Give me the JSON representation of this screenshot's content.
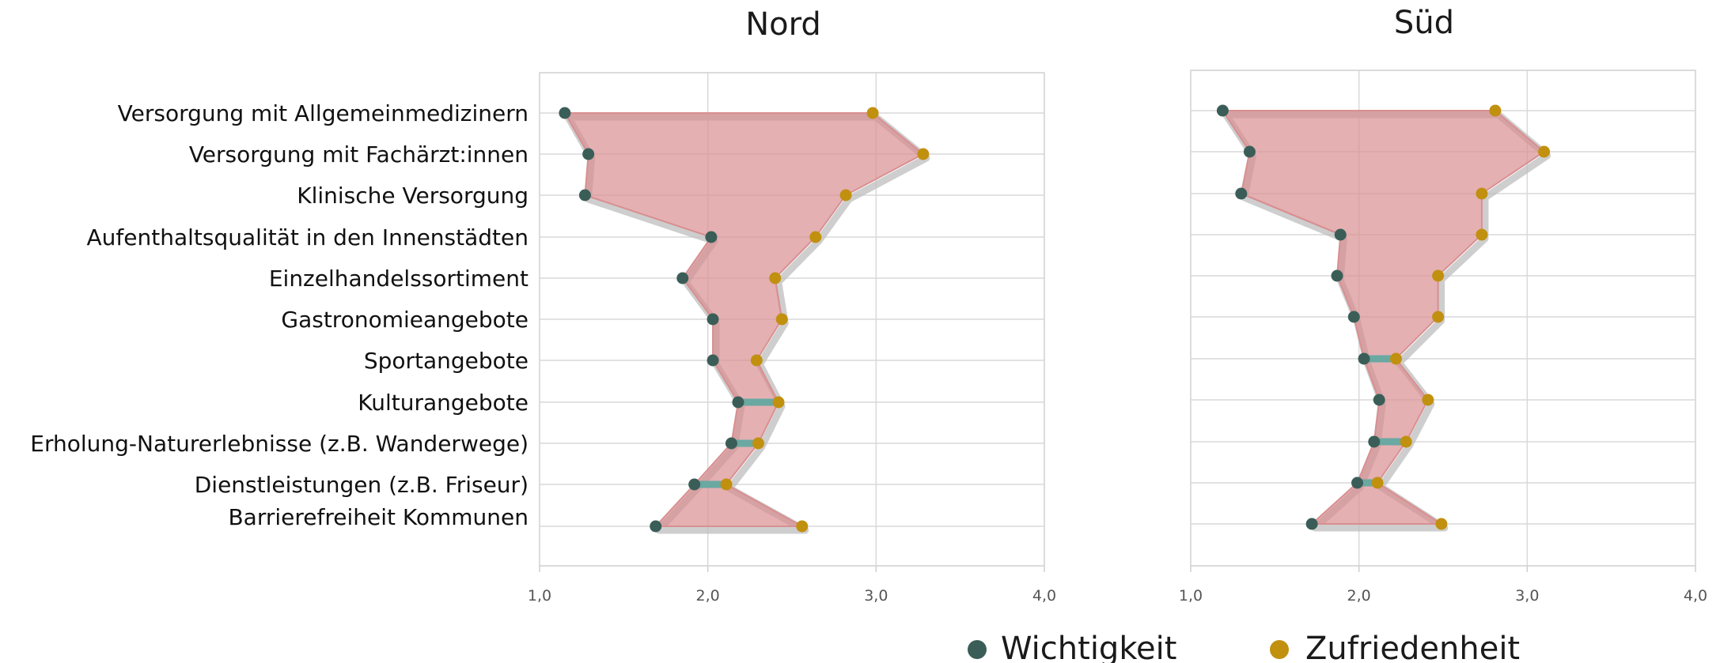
{
  "chart_data": {
    "type": "dumbbell-area",
    "categories": [
      "Versorgung mit Allgemeinmedizinern",
      "Versorgung mit Fachärzt:innen",
      "Klinische Versorgung",
      "Aufenthaltsqualität in den Innenstädten",
      "Einzelhandelssortiment",
      "Gastronomieangebote",
      "Sportangebote",
      "Kulturangebote",
      "Erholung-Naturerlebnisse (z.B. Wanderwege)",
      "Dienstleistungen (z.B. Friseur)",
      "Barrierefreiheit Kommunen"
    ],
    "xlim": [
      1.0,
      4.0
    ],
    "xticks": [
      1.0,
      2.0,
      3.0,
      4.0
    ],
    "xtick_labels": [
      "1,0",
      "2,0",
      "3,0",
      "4,0"
    ],
    "grid": true,
    "legend": {
      "placement": "bottom-center",
      "entries": [
        {
          "name": "Wichtigkeit",
          "color": "#3a5e57"
        },
        {
          "name": "Zufriedenheit",
          "color": "#c1900f"
        }
      ]
    },
    "colors": {
      "area_fill": "#d98f91",
      "shadow": "#bdbdbd",
      "wichtigkeit": "#3a5e57",
      "zufriedenheit": "#c1900f",
      "overlap_bar": "#6aa8a2",
      "grid": "#d9d9d9",
      "frame": "#cfcfcf"
    },
    "panels": [
      {
        "title": "Nord",
        "series": [
          {
            "name": "Wichtigkeit",
            "values": [
              1.15,
              1.29,
              1.27,
              2.02,
              1.85,
              2.03,
              2.03,
              2.18,
              2.14,
              1.92,
              1.69
            ]
          },
          {
            "name": "Zufriedenheit",
            "values": [
              2.98,
              3.28,
              2.82,
              2.64,
              2.4,
              2.44,
              2.29,
              2.42,
              2.3,
              2.11,
              2.56
            ]
          }
        ]
      },
      {
        "title": "Süd",
        "series": [
          {
            "name": "Wichtigkeit",
            "values": [
              1.19,
              1.35,
              1.3,
              1.89,
              1.87,
              1.97,
              2.03,
              2.12,
              2.09,
              1.99,
              1.72
            ]
          },
          {
            "name": "Zufriedenheit",
            "values": [
              2.81,
              3.1,
              2.73,
              2.73,
              2.47,
              2.47,
              2.22,
              2.41,
              2.28,
              2.11,
              2.49
            ]
          }
        ]
      }
    ]
  }
}
